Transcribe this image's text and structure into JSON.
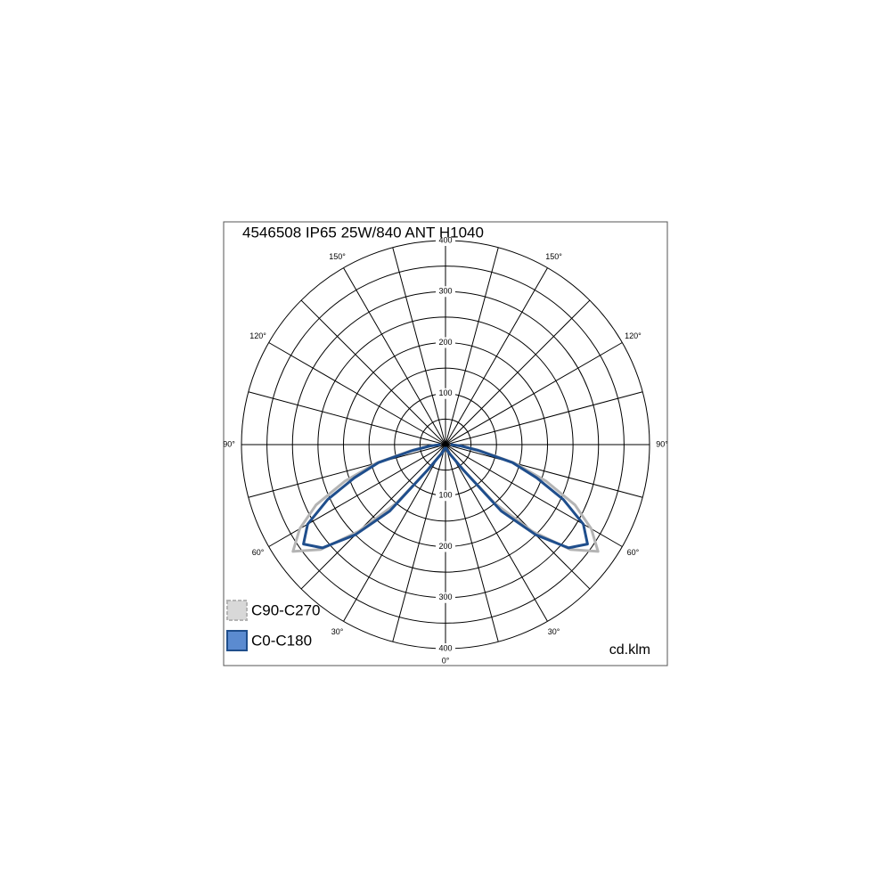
{
  "chart_data": {
    "type": "polar",
    "title": "4546508 IP65 25W/840 ANT H1040",
    "unit": "cd.klm",
    "angles": [
      0,
      10,
      20,
      30,
      35,
      40,
      45,
      50,
      55,
      60,
      65,
      70,
      75,
      80,
      85,
      90
    ],
    "series": [
      {
        "name": "C90-C270",
        "color": "#b4b4b4",
        "values": [
          5,
          8,
          15,
          30,
          60,
          150,
          240,
          320,
          365,
          330,
          280,
          210,
          140,
          70,
          30,
          10
        ]
      },
      {
        "name": "C0-C180",
        "color": "#1f4e8c",
        "values": [
          5,
          8,
          15,
          30,
          60,
          170,
          250,
          315,
          340,
          312,
          255,
          190,
          136,
          65,
          30,
          10
        ]
      }
    ],
    "rlim": [
      0,
      400
    ],
    "rgrid": [
      50,
      100,
      150,
      200,
      250,
      300,
      350,
      400
    ],
    "rticks": [
      100,
      200,
      300,
      400
    ],
    "thetaticks": [
      {
        "value": 0,
        "label": "0°"
      },
      {
        "value": 30,
        "label": "30°"
      },
      {
        "value": 60,
        "label": "60°"
      },
      {
        "value": 90,
        "label": "90°"
      },
      {
        "value": 120,
        "label": "120°"
      },
      {
        "value": 150,
        "label": "150°"
      }
    ]
  }
}
